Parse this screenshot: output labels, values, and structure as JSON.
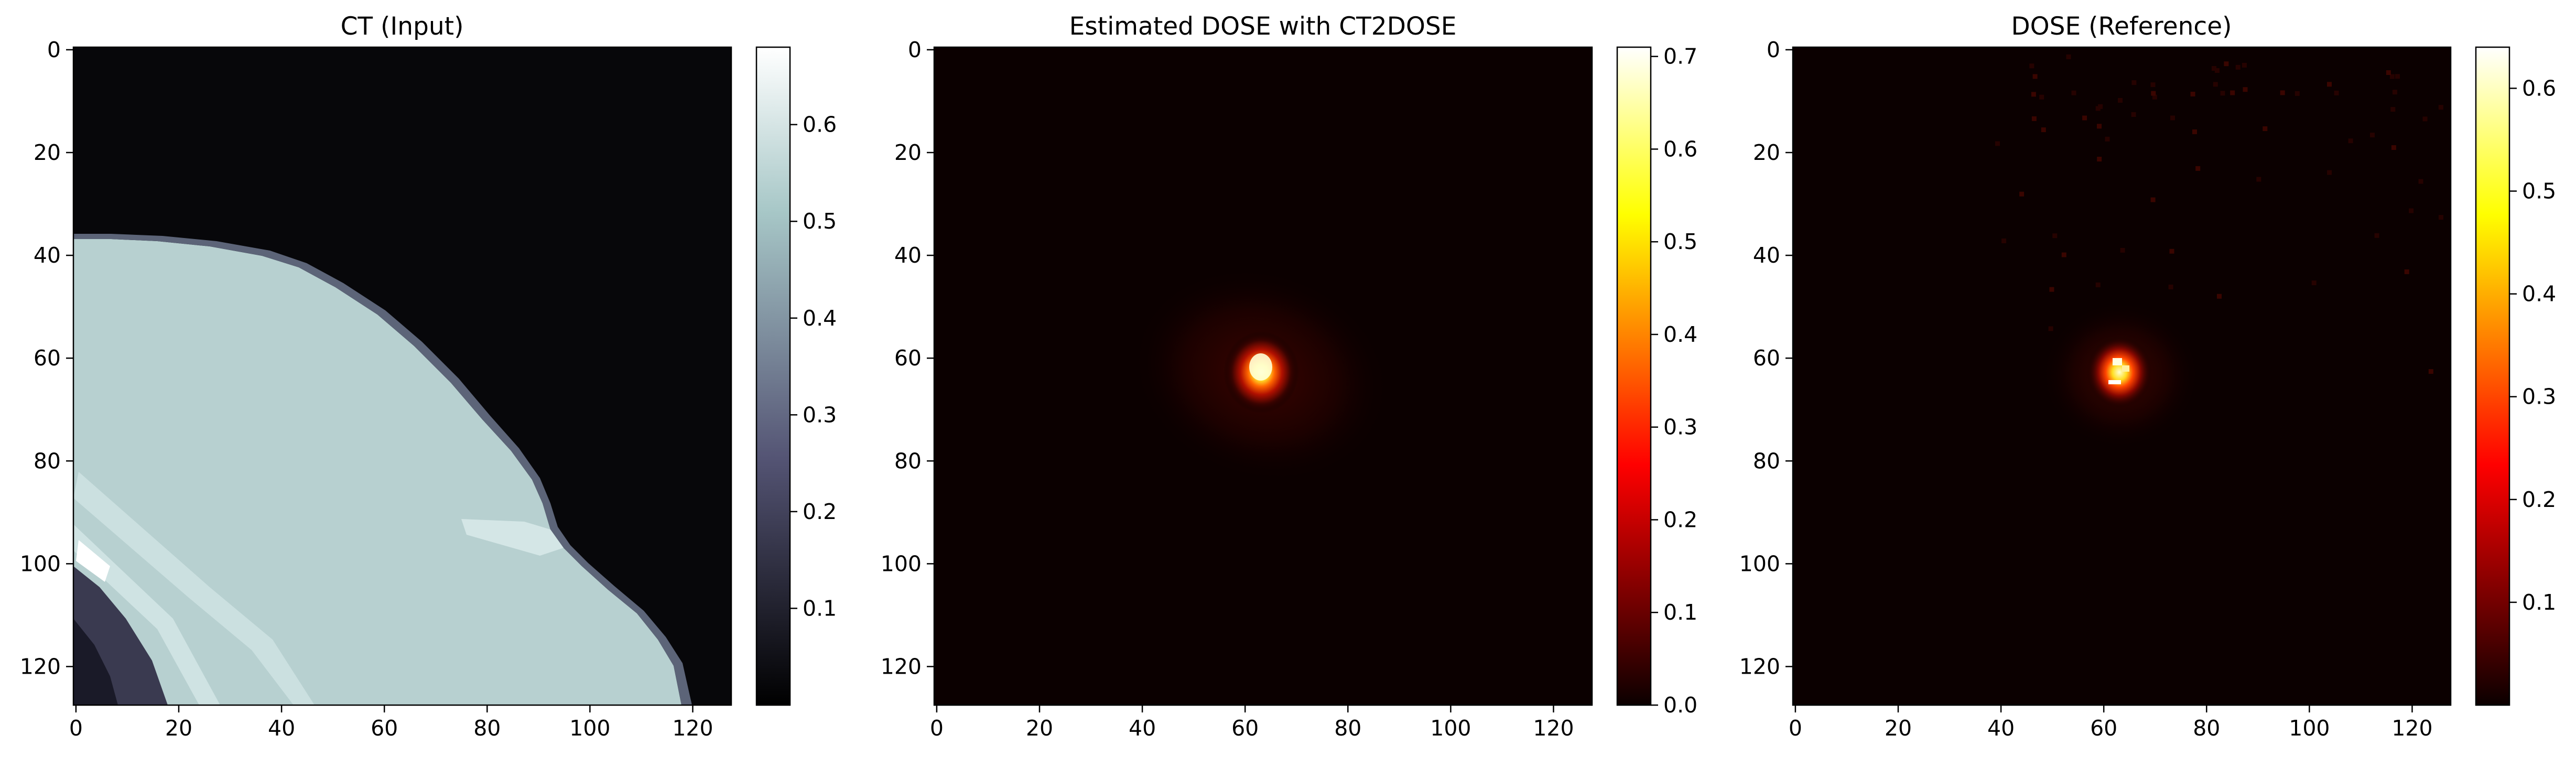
{
  "chart_data": [
    {
      "type": "heatmap",
      "title": "CT (Input)",
      "colormap": "bone",
      "xlim": [
        0,
        127
      ],
      "ylim": [
        127,
        0
      ],
      "xticks": [
        0,
        20,
        40,
        60,
        80,
        100,
        120
      ],
      "yticks": [
        0,
        20,
        40,
        60,
        80,
        100,
        120
      ],
      "colorbar": {
        "min": 0.0,
        "max": 0.68,
        "ticks": [
          0.1,
          0.2,
          0.3,
          0.4,
          0.5,
          0.6
        ]
      },
      "description_values": {
        "background": 0.02,
        "tissue": 0.55,
        "bright_spot": 0.68
      }
    },
    {
      "type": "heatmap",
      "title": "Estimated DOSE with CT2DOSE",
      "colormap": "hot",
      "xlim": [
        0,
        127
      ],
      "ylim": [
        127,
        0
      ],
      "xticks": [
        0,
        20,
        40,
        60,
        80,
        100,
        120
      ],
      "yticks": [
        0,
        20,
        40,
        60,
        80,
        100,
        120
      ],
      "colorbar": {
        "min": 0.0,
        "max": 0.71,
        "ticks": [
          0.0,
          0.1,
          0.2,
          0.3,
          0.4,
          0.5,
          0.6,
          0.7
        ]
      },
      "hotspot": {
        "x": 63,
        "y": 63,
        "peak": 0.71
      }
    },
    {
      "type": "heatmap",
      "title": "DOSE (Reference)",
      "colormap": "hot",
      "xlim": [
        0,
        127
      ],
      "ylim": [
        127,
        0
      ],
      "xticks": [
        0,
        20,
        40,
        60,
        80,
        100,
        120
      ],
      "yticks": [
        0,
        20,
        40,
        60,
        80,
        100,
        120
      ],
      "colorbar": {
        "min": 0.0,
        "max": 0.64,
        "ticks": [
          0.1,
          0.2,
          0.3,
          0.4,
          0.5,
          0.6
        ]
      },
      "hotspot": {
        "x": 63,
        "y": 63,
        "peak": 0.64
      }
    }
  ]
}
